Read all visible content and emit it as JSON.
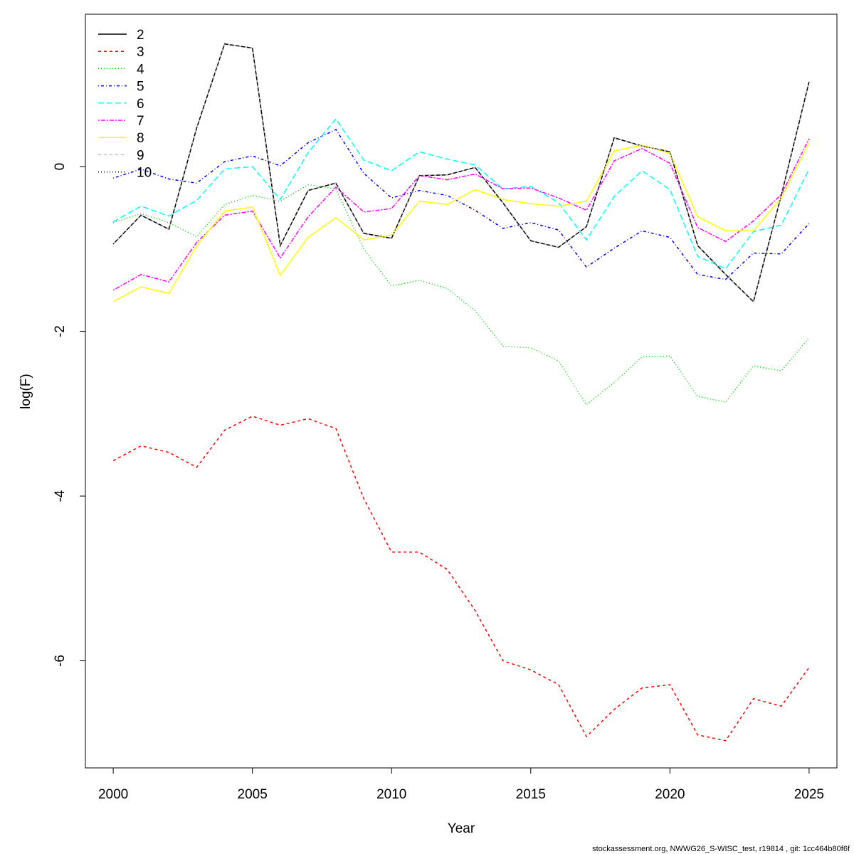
{
  "chart_data": {
    "type": "line",
    "xlabel": "Year",
    "ylabel": "log(F)",
    "footnote": "stockassessment.org, NWWG26_S-WISC_test, r19814 , git: 1cc464b80f6f",
    "x": [
      2000,
      2001,
      2002,
      2003,
      2004,
      2005,
      2006,
      2007,
      2008,
      2009,
      2010,
      2011,
      2012,
      2013,
      2014,
      2015,
      2016,
      2017,
      2018,
      2019,
      2020,
      2021,
      2022,
      2023,
      2024,
      2025
    ],
    "xlim": [
      1999,
      2026
    ],
    "xticks": [
      2000,
      2005,
      2010,
      2015,
      2020,
      2025
    ],
    "ylim": [
      -7.3,
      1.85
    ],
    "yticks": [
      -6,
      -4,
      -2,
      0
    ],
    "legend": "top-left",
    "series": [
      {
        "name": "2",
        "color": "#000000",
        "dash": "none",
        "values": [
          -0.94,
          -0.59,
          -0.76,
          0.47,
          1.49,
          1.44,
          -0.96,
          -0.29,
          -0.2,
          -0.81,
          -0.87,
          -0.11,
          -0.1,
          -0.01,
          -0.44,
          -0.9,
          -0.98,
          -0.73,
          0.35,
          0.25,
          0.18,
          -0.96,
          -1.31,
          -1.64,
          -0.35,
          1.03
        ]
      },
      {
        "name": "3",
        "color": "#ff0000",
        "dash": "4 4",
        "values": [
          -3.57,
          -3.39,
          -3.47,
          -3.65,
          -3.2,
          -3.03,
          -3.14,
          -3.06,
          -3.18,
          -4.03,
          -4.68,
          -4.68,
          -4.89,
          -5.39,
          -6.0,
          -6.11,
          -6.29,
          -6.92,
          -6.59,
          -6.33,
          -6.29,
          -6.9,
          -6.97,
          -6.46,
          -6.55,
          -6.08
        ]
      },
      {
        "name": "4",
        "color": "#00cd00",
        "dash": "1 3",
        "values": [
          -0.68,
          -0.57,
          -0.68,
          -0.85,
          -0.46,
          -0.35,
          -0.42,
          -0.22,
          -0.27,
          -1.0,
          -1.45,
          -1.38,
          -1.48,
          -1.75,
          -2.18,
          -2.2,
          -2.36,
          -2.89,
          -2.62,
          -2.31,
          -2.3,
          -2.79,
          -2.86,
          -2.42,
          -2.48,
          -2.08
        ]
      },
      {
        "name": "5",
        "color": "#0000ff",
        "dash": "1 3 4 3",
        "values": [
          -0.14,
          -0.03,
          -0.15,
          -0.2,
          0.06,
          0.13,
          0.01,
          0.29,
          0.45,
          -0.08,
          -0.38,
          -0.29,
          -0.35,
          -0.53,
          -0.75,
          -0.68,
          -0.77,
          -1.22,
          -0.99,
          -0.78,
          -0.86,
          -1.31,
          -1.37,
          -1.05,
          -1.06,
          -0.69
        ]
      },
      {
        "name": "6",
        "color": "#00ffff",
        "dash": "8 4",
        "values": [
          -0.67,
          -0.48,
          -0.6,
          -0.41,
          -0.03,
          0.0,
          -0.4,
          0.17,
          0.58,
          0.08,
          -0.05,
          0.18,
          0.09,
          0.02,
          -0.27,
          -0.24,
          -0.44,
          -0.89,
          -0.36,
          -0.05,
          -0.28,
          -1.09,
          -1.24,
          -0.79,
          -0.71,
          -0.03
        ]
      },
      {
        "name": "7",
        "color": "#ff00ff",
        "dash": "2 2 6 2",
        "values": [
          -1.5,
          -1.31,
          -1.4,
          -0.92,
          -0.59,
          -0.54,
          -1.11,
          -0.61,
          -0.25,
          -0.55,
          -0.51,
          -0.11,
          -0.16,
          -0.09,
          -0.27,
          -0.26,
          -0.38,
          -0.53,
          0.07,
          0.22,
          0.04,
          -0.74,
          -0.91,
          -0.66,
          -0.34,
          0.34
        ]
      },
      {
        "name": "8",
        "color": "#ffff00",
        "dash": "none",
        "values": [
          -1.64,
          -1.46,
          -1.54,
          -0.96,
          -0.54,
          -0.49,
          -1.32,
          -0.86,
          -0.62,
          -0.89,
          -0.83,
          -0.42,
          -0.46,
          -0.28,
          -0.4,
          -0.45,
          -0.48,
          -0.42,
          0.19,
          0.26,
          0.16,
          -0.61,
          -0.78,
          -0.78,
          -0.38,
          0.29
        ]
      },
      {
        "name": "9",
        "color": "#bebebe",
        "dash": "4 4",
        "values": [
          -0.94,
          -0.59,
          -0.76,
          0.47,
          1.49,
          1.44,
          -0.96,
          -0.29,
          -0.2,
          -0.81,
          -0.87,
          -0.11,
          -0.1,
          -0.01,
          -0.44,
          -0.9,
          -0.98,
          -0.73,
          0.35,
          0.25,
          0.18,
          -0.96,
          -1.31,
          -1.64,
          -0.35,
          1.03
        ]
      },
      {
        "name": "10",
        "color": "#000000",
        "dash": "1 3",
        "values": [
          -0.94,
          -0.59,
          -0.76,
          0.47,
          1.49,
          1.44,
          -0.96,
          -0.29,
          -0.2,
          -0.81,
          -0.87,
          -0.11,
          -0.1,
          -0.01,
          -0.44,
          -0.9,
          -0.98,
          -0.73,
          0.35,
          0.25,
          0.18,
          -0.96,
          -1.31,
          -1.64,
          -0.35,
          1.03
        ]
      }
    ]
  }
}
